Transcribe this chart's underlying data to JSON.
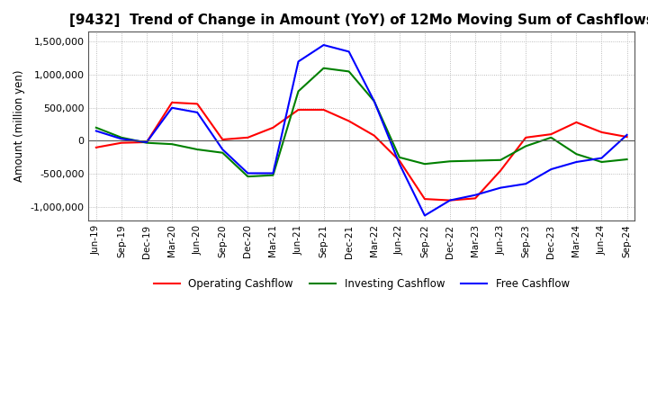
{
  "title": "[9432]  Trend of Change in Amount (YoY) of 12Mo Moving Sum of Cashflows",
  "ylabel": "Amount (million yen)",
  "ylim": [
    -1200000,
    1650000
  ],
  "yticks": [
    -1000000,
    -500000,
    0,
    500000,
    1000000,
    1500000
  ],
  "background_color": "#ffffff",
  "grid_color": "#aaaaaa",
  "dates": [
    "Jun-19",
    "Sep-19",
    "Dec-19",
    "Mar-20",
    "Jun-20",
    "Sep-20",
    "Dec-20",
    "Mar-21",
    "Jun-21",
    "Sep-21",
    "Dec-21",
    "Mar-22",
    "Jun-22",
    "Sep-22",
    "Dec-22",
    "Mar-23",
    "Jun-23",
    "Sep-23",
    "Dec-23",
    "Mar-24",
    "Jun-24",
    "Sep-24"
  ],
  "operating": [
    -100000,
    -30000,
    -20000,
    580000,
    560000,
    20000,
    50000,
    200000,
    470000,
    470000,
    300000,
    80000,
    -300000,
    -880000,
    -900000,
    -870000,
    -450000,
    50000,
    100000,
    280000,
    130000,
    60000
  ],
  "investing": [
    200000,
    50000,
    -30000,
    -50000,
    -130000,
    -180000,
    -540000,
    -520000,
    750000,
    1100000,
    1050000,
    600000,
    -250000,
    -350000,
    -310000,
    -300000,
    -290000,
    -80000,
    50000,
    -200000,
    -320000,
    -280000
  ],
  "free": [
    150000,
    30000,
    -20000,
    500000,
    430000,
    -130000,
    -490000,
    -490000,
    1200000,
    1450000,
    1350000,
    600000,
    -350000,
    -1130000,
    -900000,
    -820000,
    -710000,
    -650000,
    -430000,
    -320000,
    -260000,
    90000
  ],
  "line_colors": {
    "operating": "#ff0000",
    "investing": "#008000",
    "free": "#0000ff"
  },
  "line_width": 1.5,
  "title_fontsize": 11,
  "legend_labels": [
    "Operating Cashflow",
    "Investing Cashflow",
    "Free Cashflow"
  ]
}
